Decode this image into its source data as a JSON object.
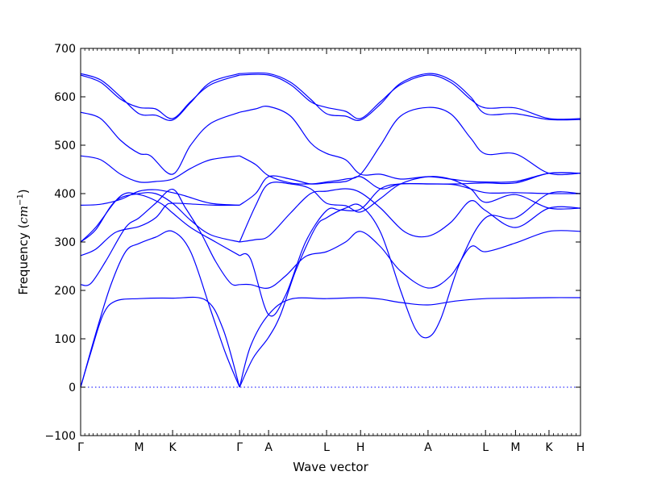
{
  "chart_data": {
    "type": "line",
    "title": "",
    "xlabel": "Wave vector",
    "ylabel_main": "Frequency (",
    "ylabel_unit": "cm",
    "ylabel_exp": "−1",
    "ylabel_close": ")",
    "ylim": [
      -100,
      700
    ],
    "y_ticks": [
      -100,
      0,
      100,
      200,
      300,
      400,
      500,
      600,
      700
    ],
    "y_tick_labels": [
      "−100",
      "0",
      "100",
      "200",
      "300",
      "400",
      "500",
      "600",
      "700"
    ],
    "grid": false,
    "line_color": "#0000ff",
    "zero_line": 0,
    "xlim": [
      0,
      1
    ],
    "x_tick_labels": [
      {
        "label": "Γ",
        "x": 0.0
      },
      {
        "label": "M",
        "x": 0.117
      },
      {
        "label": "K",
        "x": 0.184
      },
      {
        "label": "Γ",
        "x": 0.318
      },
      {
        "label": "A",
        "x": 0.376
      },
      {
        "label": "L",
        "x": 0.492
      },
      {
        "label": "H",
        "x": 0.56
      },
      {
        "label": "A",
        "x": 0.695
      },
      {
        "label": "L",
        "x": 0.81
      },
      {
        "label": "M",
        "x": 0.87
      },
      {
        "label": "K",
        "x": 0.937
      },
      {
        "label": "H",
        "x": 1.0
      }
    ],
    "series": [
      {
        "points": [
          [
            0.0,
            0
          ],
          [
            0.02,
            70
          ],
          [
            0.045,
            150
          ],
          [
            0.07,
            178
          ],
          [
            0.117,
            183
          ],
          [
            0.184,
            184
          ],
          [
            0.25,
            180
          ],
          [
            0.285,
            120
          ],
          [
            0.318,
            0
          ]
        ]
      },
      {
        "points": [
          [
            0.0,
            0
          ],
          [
            0.03,
            110
          ],
          [
            0.06,
            210
          ],
          [
            0.09,
            280
          ],
          [
            0.117,
            297
          ],
          [
            0.15,
            310
          ],
          [
            0.184,
            322
          ],
          [
            0.22,
            280
          ],
          [
            0.26,
            160
          ],
          [
            0.29,
            70
          ],
          [
            0.318,
            0
          ]
        ]
      },
      {
        "points": [
          [
            0.0,
            212
          ],
          [
            0.02,
            214
          ],
          [
            0.05,
            260
          ],
          [
            0.09,
            330
          ],
          [
            0.117,
            350
          ],
          [
            0.15,
            380
          ],
          [
            0.184,
            409
          ],
          [
            0.21,
            370
          ],
          [
            0.24,
            320
          ],
          [
            0.27,
            260
          ],
          [
            0.3,
            215
          ],
          [
            0.318,
            212
          ]
        ]
      },
      {
        "points": [
          [
            0.0,
            272
          ],
          [
            0.03,
            285
          ],
          [
            0.07,
            320
          ],
          [
            0.117,
            332
          ],
          [
            0.15,
            350
          ],
          [
            0.17,
            375
          ],
          [
            0.184,
            380
          ],
          [
            0.23,
            378
          ],
          [
            0.27,
            376
          ],
          [
            0.318,
            376
          ]
        ]
      },
      {
        "points": [
          [
            0.0,
            300
          ],
          [
            0.03,
            325
          ],
          [
            0.07,
            385
          ],
          [
            0.117,
            400
          ],
          [
            0.15,
            400
          ],
          [
            0.184,
            380
          ],
          [
            0.22,
            345
          ],
          [
            0.26,
            315
          ],
          [
            0.318,
            300
          ]
        ]
      },
      {
        "points": [
          [
            0.0,
            300
          ],
          [
            0.03,
            330
          ],
          [
            0.08,
            395
          ],
          [
            0.117,
            398
          ],
          [
            0.16,
            380
          ],
          [
            0.184,
            360
          ],
          [
            0.22,
            330
          ],
          [
            0.27,
            300
          ],
          [
            0.318,
            272
          ]
        ]
      },
      {
        "points": [
          [
            0.0,
            376
          ],
          [
            0.04,
            378
          ],
          [
            0.08,
            388
          ],
          [
            0.117,
            405
          ],
          [
            0.15,
            408
          ],
          [
            0.184,
            402
          ],
          [
            0.21,
            395
          ],
          [
            0.26,
            380
          ],
          [
            0.318,
            376
          ]
        ]
      },
      {
        "points": [
          [
            0.0,
            478
          ],
          [
            0.04,
            470
          ],
          [
            0.08,
            440
          ],
          [
            0.117,
            424
          ],
          [
            0.15,
            425
          ],
          [
            0.184,
            430
          ],
          [
            0.22,
            452
          ],
          [
            0.26,
            470
          ],
          [
            0.318,
            478
          ]
        ]
      },
      {
        "points": [
          [
            0.0,
            568
          ],
          [
            0.04,
            555
          ],
          [
            0.08,
            510
          ],
          [
            0.117,
            483
          ],
          [
            0.14,
            478
          ],
          [
            0.184,
            440
          ],
          [
            0.22,
            500
          ],
          [
            0.26,
            545
          ],
          [
            0.318,
            568
          ]
        ]
      },
      {
        "points": [
          [
            0.0,
            645
          ],
          [
            0.04,
            630
          ],
          [
            0.08,
            595
          ],
          [
            0.117,
            578
          ],
          [
            0.15,
            575
          ],
          [
            0.184,
            555
          ],
          [
            0.22,
            590
          ],
          [
            0.26,
            625
          ],
          [
            0.318,
            645
          ]
        ]
      },
      {
        "points": [
          [
            0.0,
            648
          ],
          [
            0.04,
            635
          ],
          [
            0.08,
            600
          ],
          [
            0.117,
            565
          ],
          [
            0.15,
            562
          ],
          [
            0.184,
            552
          ],
          [
            0.22,
            588
          ],
          [
            0.26,
            630
          ],
          [
            0.318,
            648
          ]
        ]
      },
      {
        "points": [
          [
            0.318,
            0
          ],
          [
            0.34,
            85
          ],
          [
            0.376,
            150
          ],
          [
            0.42,
            182
          ],
          [
            0.492,
            183
          ],
          [
            0.56,
            185
          ],
          [
            0.6,
            182
          ],
          [
            0.64,
            175
          ],
          [
            0.695,
            170
          ],
          [
            0.75,
            178
          ],
          [
            0.81,
            183
          ],
          [
            0.87,
            184
          ],
          [
            0.937,
            185
          ],
          [
            1.0,
            185
          ]
        ]
      },
      {
        "points": [
          [
            0.318,
            0
          ],
          [
            0.345,
            60
          ],
          [
            0.376,
            103
          ],
          [
            0.4,
            150
          ],
          [
            0.43,
            240
          ],
          [
            0.47,
            330
          ],
          [
            0.492,
            350
          ],
          [
            0.53,
            370
          ],
          [
            0.56,
            375
          ],
          [
            0.6,
            320
          ],
          [
            0.64,
            200
          ],
          [
            0.67,
            120
          ],
          [
            0.695,
            103
          ],
          [
            0.72,
            140
          ],
          [
            0.76,
            260
          ],
          [
            0.81,
            350
          ],
          [
            0.87,
            350
          ],
          [
            0.937,
            400
          ],
          [
            1.0,
            400
          ]
        ]
      },
      {
        "points": [
          [
            0.318,
            212
          ],
          [
            0.34,
            212
          ],
          [
            0.376,
            205
          ],
          [
            0.41,
            230
          ],
          [
            0.45,
            270
          ],
          [
            0.492,
            280
          ],
          [
            0.53,
            300
          ],
          [
            0.56,
            322
          ],
          [
            0.6,
            290
          ],
          [
            0.64,
            240
          ],
          [
            0.695,
            205
          ],
          [
            0.74,
            230
          ],
          [
            0.78,
            290
          ],
          [
            0.81,
            280
          ],
          [
            0.87,
            298
          ],
          [
            0.937,
            322
          ],
          [
            1.0,
            322
          ]
        ]
      },
      {
        "points": [
          [
            0.318,
            300
          ],
          [
            0.35,
            305
          ],
          [
            0.376,
            312
          ],
          [
            0.42,
            360
          ],
          [
            0.46,
            400
          ],
          [
            0.492,
            405
          ],
          [
            0.53,
            410
          ],
          [
            0.56,
            402
          ],
          [
            0.6,
            370
          ],
          [
            0.65,
            320
          ],
          [
            0.695,
            312
          ],
          [
            0.74,
            340
          ],
          [
            0.78,
            385
          ],
          [
            0.81,
            365
          ],
          [
            0.87,
            330
          ],
          [
            0.937,
            370
          ],
          [
            1.0,
            370
          ]
        ]
      },
      {
        "points": [
          [
            0.318,
            272
          ],
          [
            0.34,
            265
          ],
          [
            0.376,
            150
          ],
          [
            0.41,
            190
          ],
          [
            0.45,
            300
          ],
          [
            0.492,
            365
          ],
          [
            0.52,
            366
          ],
          [
            0.56,
            368
          ],
          [
            0.6,
            410
          ],
          [
            0.64,
            420
          ],
          [
            0.695,
            420
          ],
          [
            0.75,
            418
          ],
          [
            0.81,
            402
          ],
          [
            0.87,
            402
          ],
          [
            0.937,
            400
          ],
          [
            1.0,
            400
          ]
        ]
      },
      {
        "points": [
          [
            0.318,
            300
          ],
          [
            0.35,
            375
          ],
          [
            0.376,
            420
          ],
          [
            0.42,
            420
          ],
          [
            0.46,
            410
          ],
          [
            0.492,
            380
          ],
          [
            0.53,
            375
          ],
          [
            0.56,
            362
          ],
          [
            0.6,
            390
          ],
          [
            0.64,
            420
          ],
          [
            0.695,
            435
          ],
          [
            0.74,
            430
          ],
          [
            0.78,
            410
          ],
          [
            0.81,
            382
          ],
          [
            0.87,
            398
          ],
          [
            0.937,
            370
          ],
          [
            1.0,
            370
          ]
        ]
      },
      {
        "points": [
          [
            0.318,
            376
          ],
          [
            0.35,
            400
          ],
          [
            0.376,
            435
          ],
          [
            0.42,
            430
          ],
          [
            0.46,
            420
          ],
          [
            0.492,
            422
          ],
          [
            0.53,
            425
          ],
          [
            0.56,
            435
          ],
          [
            0.6,
            410
          ],
          [
            0.64,
            420
          ],
          [
            0.695,
            420
          ],
          [
            0.75,
            420
          ],
          [
            0.81,
            422
          ],
          [
            0.87,
            422
          ],
          [
            0.937,
            442
          ],
          [
            1.0,
            442
          ]
        ]
      },
      {
        "points": [
          [
            0.318,
            478
          ],
          [
            0.35,
            460
          ],
          [
            0.376,
            437
          ],
          [
            0.42,
            422
          ],
          [
            0.46,
            420
          ],
          [
            0.492,
            424
          ],
          [
            0.53,
            430
          ],
          [
            0.56,
            440
          ],
          [
            0.6,
            500
          ],
          [
            0.64,
            560
          ],
          [
            0.695,
            578
          ],
          [
            0.74,
            565
          ],
          [
            0.78,
            515
          ],
          [
            0.81,
            482
          ],
          [
            0.87,
            482
          ],
          [
            0.937,
            442
          ],
          [
            1.0,
            442
          ]
        ]
      },
      {
        "points": [
          [
            0.318,
            568
          ],
          [
            0.35,
            575
          ],
          [
            0.376,
            580
          ],
          [
            0.42,
            560
          ],
          [
            0.46,
            505
          ],
          [
            0.492,
            483
          ],
          [
            0.53,
            470
          ],
          [
            0.56,
            440
          ],
          [
            0.6,
            440
          ],
          [
            0.64,
            430
          ],
          [
            0.695,
            435
          ],
          [
            0.74,
            430
          ],
          [
            0.78,
            425
          ],
          [
            0.81,
            424
          ],
          [
            0.87,
            425
          ],
          [
            0.937,
            442
          ],
          [
            1.0,
            442
          ]
        ]
      },
      {
        "points": [
          [
            0.318,
            645
          ],
          [
            0.376,
            645
          ],
          [
            0.42,
            625
          ],
          [
            0.46,
            590
          ],
          [
            0.492,
            578
          ],
          [
            0.53,
            570
          ],
          [
            0.56,
            555
          ],
          [
            0.6,
            590
          ],
          [
            0.64,
            625
          ],
          [
            0.695,
            645
          ],
          [
            0.74,
            630
          ],
          [
            0.78,
            595
          ],
          [
            0.81,
            577
          ],
          [
            0.87,
            577
          ],
          [
            0.937,
            555
          ],
          [
            1.0,
            555
          ]
        ]
      },
      {
        "points": [
          [
            0.318,
            648
          ],
          [
            0.376,
            648
          ],
          [
            0.42,
            630
          ],
          [
            0.46,
            595
          ],
          [
            0.492,
            565
          ],
          [
            0.53,
            560
          ],
          [
            0.56,
            552
          ],
          [
            0.6,
            585
          ],
          [
            0.64,
            628
          ],
          [
            0.695,
            648
          ],
          [
            0.74,
            635
          ],
          [
            0.78,
            600
          ],
          [
            0.81,
            565
          ],
          [
            0.87,
            565
          ],
          [
            0.937,
            553
          ],
          [
            1.0,
            553
          ]
        ]
      }
    ]
  }
}
